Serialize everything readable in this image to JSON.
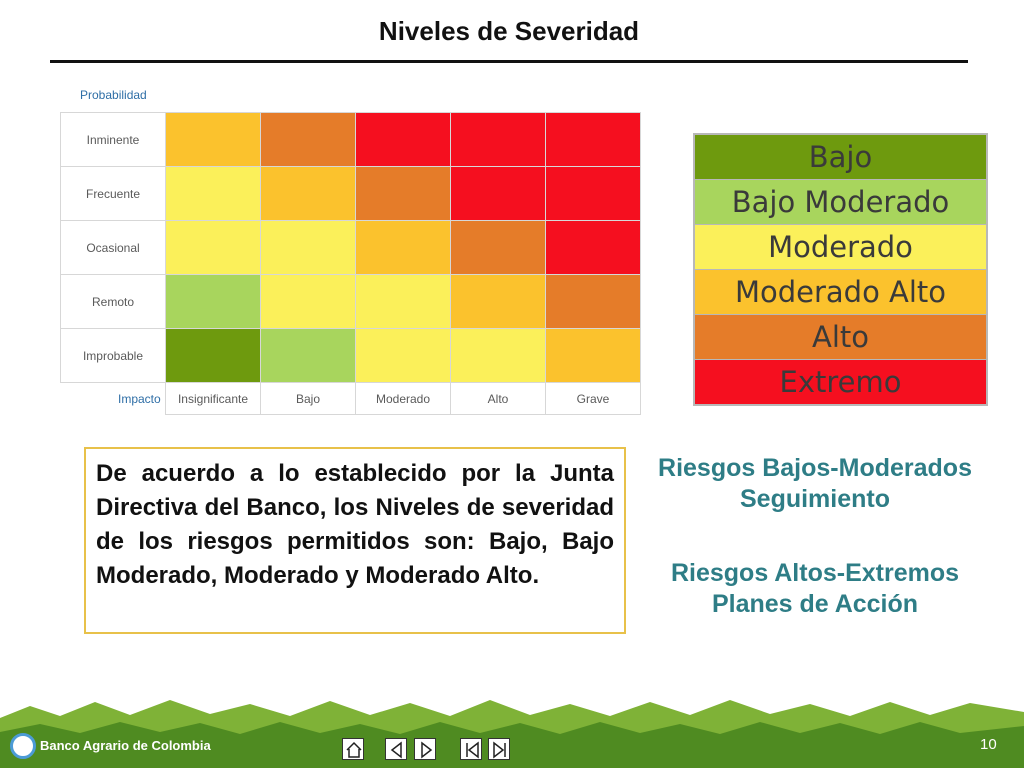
{
  "slide": {
    "title": "Niveles de Severidad",
    "page_number": "10"
  },
  "matrix": {
    "probability_label": "Probabilidad",
    "impact_label": "Impacto",
    "rows": [
      "Inminente",
      "Frecuente",
      "Ocasional",
      "Remoto",
      "Improbable"
    ],
    "columns": [
      "Insignificante",
      "Bajo",
      "Moderado",
      "Alto",
      "Grave"
    ],
    "cell_levels": [
      [
        3,
        4,
        5,
        5,
        5
      ],
      [
        2,
        3,
        4,
        5,
        5
      ],
      [
        2,
        2,
        3,
        4,
        5
      ],
      [
        1,
        2,
        2,
        3,
        4
      ],
      [
        0,
        1,
        2,
        2,
        3
      ]
    ]
  },
  "legend": {
    "items": [
      {
        "label": "Bajo",
        "color": "#6e9a0e"
      },
      {
        "label": "Bajo Moderado",
        "color": "#a8d55d"
      },
      {
        "label": "Moderado",
        "color": "#fbf05a"
      },
      {
        "label": "Moderado Alto",
        "color": "#fbc22d"
      },
      {
        "label": "Alto",
        "color": "#e57c29"
      },
      {
        "label": "Extremo",
        "color": "#f50f1f"
      }
    ]
  },
  "body_text": "De acuerdo a lo establecido por la Junta Directiva del Banco, los Niveles de severidad de los riesgos permitidos son: Bajo, Bajo Moderado, Moderado y Moderado Alto.",
  "notes": {
    "low": "Riesgos Bajos-Moderados Seguimiento",
    "high": "Riesgos Altos-Extremos Planes de Acción"
  },
  "footer": {
    "brand": "Banco Agrario de Colombia",
    "nav_icons": [
      "home-icon",
      "previous-icon",
      "next-icon",
      "first-icon",
      "last-icon"
    ]
  }
}
